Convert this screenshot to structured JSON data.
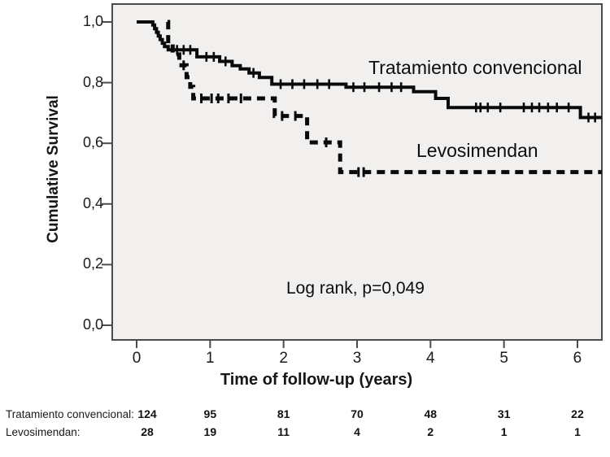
{
  "chart_data": {
    "type": "line",
    "subtype": "kaplan-meier-step",
    "title": "",
    "xlabel": "Time of follow-up (years)",
    "ylabel": "Cumulative Survival",
    "xlim": [
      -0.33,
      6.36
    ],
    "ylim": [
      -0.05,
      1.06
    ],
    "grid": false,
    "x_ticks": [
      0,
      1,
      2,
      3,
      4,
      5,
      6
    ],
    "x_tick_labels": [
      "0",
      "1",
      "2",
      "3",
      "4",
      "5",
      "6"
    ],
    "y_ticks": [
      1.0,
      0.8,
      0.6,
      0.4,
      0.2,
      0.0
    ],
    "y_tick_labels": [
      "1,0",
      "0,8",
      "0,6",
      "0,4",
      "0,2",
      "0,0"
    ],
    "annotation": "Log rank, p=0,049",
    "plot_bg_color": "#f1f0ee",
    "frame_color": "#4b4b4b",
    "curve_color": "#0a0a0a",
    "x_end": 6.33,
    "series": [
      {
        "name": "Tratamiento convencional",
        "line_style": "solid",
        "steps": [
          [
            0,
            1.0
          ],
          [
            0.22,
            0.99
          ],
          [
            0.245,
            0.978
          ],
          [
            0.27,
            0.966
          ],
          [
            0.295,
            0.954
          ],
          [
            0.32,
            0.942
          ],
          [
            0.35,
            0.93
          ],
          [
            0.38,
            0.919
          ],
          [
            0.43,
            0.908
          ],
          [
            0.82,
            0.885
          ],
          [
            1.13,
            0.87
          ],
          [
            1.3,
            0.856
          ],
          [
            1.41,
            0.845
          ],
          [
            1.53,
            0.832
          ],
          [
            1.67,
            0.817
          ],
          [
            1.84,
            0.795
          ],
          [
            2.85,
            0.785
          ],
          [
            3.77,
            0.77
          ],
          [
            4.07,
            0.748
          ],
          [
            4.24,
            0.718
          ],
          [
            6.04,
            0.685
          ]
        ],
        "censor_marks": [
          [
            0.55,
            0.908
          ],
          [
            0.64,
            0.908
          ],
          [
            0.73,
            0.908
          ],
          [
            0.95,
            0.885
          ],
          [
            1.05,
            0.885
          ],
          [
            1.21,
            0.87
          ],
          [
            1.59,
            0.832
          ],
          [
            1.96,
            0.795
          ],
          [
            2.12,
            0.795
          ],
          [
            2.28,
            0.795
          ],
          [
            2.46,
            0.795
          ],
          [
            2.62,
            0.795
          ],
          [
            2.95,
            0.785
          ],
          [
            3.1,
            0.785
          ],
          [
            3.3,
            0.785
          ],
          [
            3.47,
            0.785
          ],
          [
            3.6,
            0.785
          ],
          [
            4.62,
            0.718
          ],
          [
            4.68,
            0.718
          ],
          [
            4.78,
            0.718
          ],
          [
            4.95,
            0.718
          ],
          [
            5.27,
            0.718
          ],
          [
            5.38,
            0.718
          ],
          [
            5.48,
            0.718
          ],
          [
            5.6,
            0.718
          ],
          [
            5.72,
            0.718
          ],
          [
            5.88,
            0.718
          ],
          [
            6.15,
            0.685
          ],
          [
            6.24,
            0.685
          ]
        ]
      },
      {
        "name": "Levosimendan",
        "line_style": "dashed",
        "steps": [
          [
            0.42,
            1.0
          ],
          [
            0.43,
            0.93
          ],
          [
            0.49,
            0.893
          ],
          [
            0.58,
            0.857
          ],
          [
            0.68,
            0.818
          ],
          [
            0.73,
            0.786
          ],
          [
            0.77,
            0.748
          ],
          [
            1.88,
            0.69
          ],
          [
            2.32,
            0.603
          ],
          [
            2.77,
            0.505
          ]
        ],
        "censor_marks": [
          [
            0.64,
            0.857
          ],
          [
            0.88,
            0.748
          ],
          [
            1.02,
            0.748
          ],
          [
            1.11,
            0.748
          ],
          [
            1.25,
            0.748
          ],
          [
            1.42,
            0.748
          ],
          [
            1.98,
            0.69
          ],
          [
            2.16,
            0.69
          ],
          [
            2.58,
            0.603
          ],
          [
            3.02,
            0.505
          ],
          [
            3.09,
            0.505
          ]
        ]
      }
    ]
  },
  "risk_table": {
    "years": [
      0,
      1,
      2,
      3,
      4,
      5,
      6
    ],
    "rows": [
      {
        "label": "Tratamiento convencional:",
        "counts": [
          "124",
          "95",
          "81",
          "70",
          "48",
          "31",
          "22"
        ]
      },
      {
        "label": "Levosimendan:",
        "counts": [
          "28",
          "19",
          "11",
          "4",
          "2",
          "1",
          "1"
        ]
      }
    ]
  }
}
